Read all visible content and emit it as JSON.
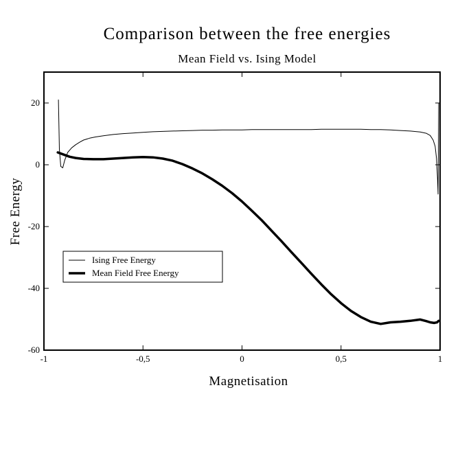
{
  "chart_data": {
    "type": "line",
    "title": "Comparison between the free energies",
    "subtitle": "Mean Field vs. Ising Model",
    "xlabel": "Magnetisation",
    "ylabel": "Free Energy",
    "xlim": [
      -1,
      1
    ],
    "ylim": [
      -60,
      30
    ],
    "grid": false,
    "legend_position": "lower-left",
    "x_ticks": [
      {
        "value": -1,
        "label": "-1"
      },
      {
        "value": -0.5,
        "label": "-0,5"
      },
      {
        "value": 0,
        "label": "0"
      },
      {
        "value": 0.5,
        "label": "0,5"
      },
      {
        "value": 1,
        "label": "1"
      }
    ],
    "y_ticks": [
      {
        "value": -60,
        "label": "-60"
      },
      {
        "value": -40,
        "label": "-40"
      },
      {
        "value": -20,
        "label": "-20"
      },
      {
        "value": 0,
        "label": "0"
      },
      {
        "value": 20,
        "label": "20"
      }
    ],
    "series": [
      {
        "name": "Ising Free Energy",
        "style": "thin",
        "color": "#000000",
        "x": [
          -0.927,
          -0.922,
          -0.915,
          -0.905,
          -0.895,
          -0.88,
          -0.86,
          -0.84,
          -0.82,
          -0.8,
          -0.77,
          -0.74,
          -0.7,
          -0.65,
          -0.6,
          -0.55,
          -0.5,
          -0.45,
          -0.4,
          -0.35,
          -0.3,
          -0.25,
          -0.2,
          -0.15,
          -0.1,
          -0.05,
          0.0,
          0.05,
          0.1,
          0.15,
          0.2,
          0.25,
          0.3,
          0.35,
          0.4,
          0.45,
          0.5,
          0.55,
          0.6,
          0.65,
          0.7,
          0.75,
          0.8,
          0.85,
          0.9,
          0.93,
          0.95,
          0.965,
          0.975,
          0.982,
          0.987,
          0.99,
          0.993
        ],
        "values": [
          21.0,
          5.0,
          -0.5,
          -1.0,
          1.5,
          4.0,
          5.5,
          6.5,
          7.3,
          8.0,
          8.6,
          9.0,
          9.4,
          9.8,
          10.1,
          10.3,
          10.5,
          10.7,
          10.8,
          10.9,
          11.0,
          11.1,
          11.2,
          11.2,
          11.3,
          11.3,
          11.3,
          11.4,
          11.4,
          11.4,
          11.4,
          11.4,
          11.4,
          11.4,
          11.5,
          11.5,
          11.5,
          11.5,
          11.5,
          11.4,
          11.4,
          11.3,
          11.1,
          10.9,
          10.6,
          10.2,
          9.5,
          8.0,
          6.0,
          2.0,
          -4.0,
          -9.5,
          20.0
        ]
      },
      {
        "name": "Mean Field Free Energy",
        "style": "thick",
        "color": "#000000",
        "x": [
          -0.93,
          -0.9,
          -0.87,
          -0.84,
          -0.8,
          -0.75,
          -0.7,
          -0.65,
          -0.6,
          -0.55,
          -0.5,
          -0.45,
          -0.4,
          -0.35,
          -0.3,
          -0.25,
          -0.2,
          -0.15,
          -0.1,
          -0.05,
          0.0,
          0.05,
          0.1,
          0.15,
          0.2,
          0.25,
          0.3,
          0.35,
          0.4,
          0.45,
          0.5,
          0.55,
          0.6,
          0.65,
          0.7,
          0.75,
          0.8,
          0.85,
          0.9,
          0.93,
          0.95,
          0.97,
          0.985,
          0.993
        ],
        "values": [
          4.0,
          3.3,
          2.6,
          2.2,
          1.9,
          1.8,
          1.8,
          2.0,
          2.2,
          2.4,
          2.5,
          2.4,
          2.0,
          1.3,
          0.2,
          -1.2,
          -2.8,
          -4.7,
          -6.8,
          -9.2,
          -11.9,
          -14.9,
          -18.0,
          -21.4,
          -24.8,
          -28.3,
          -31.8,
          -35.3,
          -38.7,
          -41.9,
          -44.8,
          -47.3,
          -49.3,
          -50.8,
          -51.5,
          -51.0,
          -50.8,
          -50.5,
          -50.1,
          -50.6,
          -51.0,
          -51.2,
          -51.0,
          -50.5
        ]
      }
    ]
  }
}
